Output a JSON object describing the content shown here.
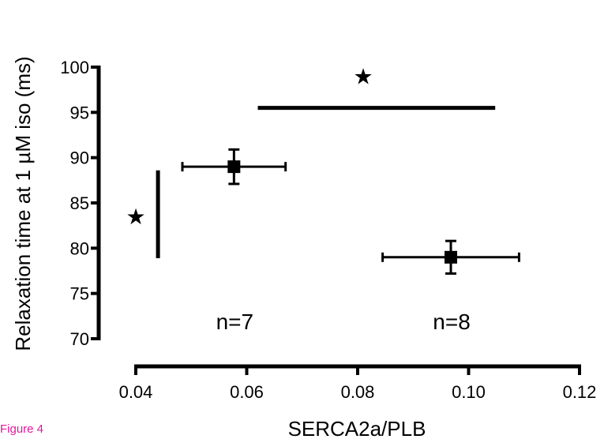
{
  "figure_label": "Figure 4",
  "colors": {
    "ink": "#000000",
    "figure_label": "#e0199a"
  },
  "chart_data": {
    "type": "scatter",
    "title": "",
    "xlabel": "SERCA2a/PLB",
    "ylabel": "Relaxation time  at 1 µM iso (ms)",
    "xlim": [
      0.04,
      0.12
    ],
    "ylim": [
      70,
      100
    ],
    "x_ticks": [
      0.04,
      0.06,
      0.08,
      0.1,
      0.12
    ],
    "x_tick_labels": [
      "0.04",
      "0.06",
      "0.08",
      "0.10",
      "0.12"
    ],
    "y_ticks": [
      70,
      75,
      80,
      85,
      90,
      95,
      100
    ],
    "y_tick_labels": [
      "70",
      "75",
      "80",
      "85",
      "90",
      "95",
      "100"
    ],
    "grid": false,
    "points": [
      {
        "x": 0.0577,
        "y": 89.0,
        "x_err": 0.0093,
        "y_err": 1.9,
        "n_label": "n=7"
      },
      {
        "x": 0.0968,
        "y": 79.0,
        "x_err": 0.0123,
        "y_err": 1.8,
        "n_label": "n=8"
      }
    ],
    "significance": [
      {
        "orientation": "vertical",
        "x": 0.044,
        "y_from": 78.9,
        "y_to": 88.6,
        "marker": "★",
        "marker_x": 0.04,
        "marker_y": 83.5
      },
      {
        "orientation": "horizontal",
        "y": 95.5,
        "x_from": 0.062,
        "x_to": 0.1048,
        "marker": "★",
        "marker_x": 0.081,
        "marker_y": 99.0
      }
    ]
  }
}
